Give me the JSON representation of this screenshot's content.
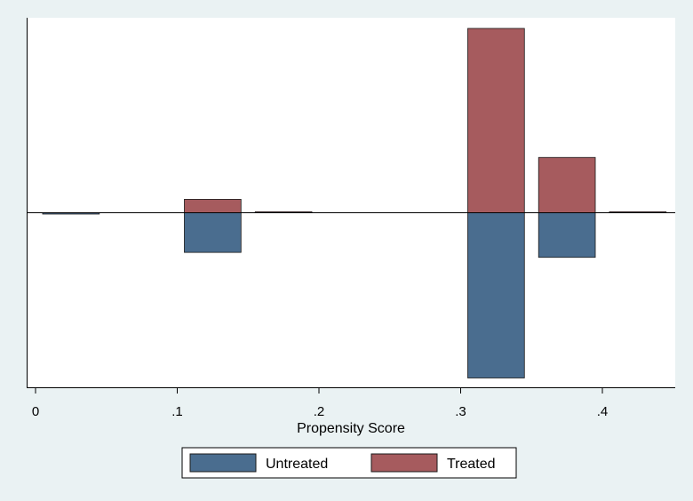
{
  "chart_data": {
    "type": "bar",
    "orientation": "mirrored",
    "xlabel": "Propensity Score",
    "xlim": [
      -0.005,
      0.45
    ],
    "ylim": [
      -1,
      1.1
    ],
    "x_ticks": [
      {
        "value": 0,
        "label": "0"
      },
      {
        "value": 0.1,
        "label": ".1"
      },
      {
        "value": 0.2,
        "label": ".2"
      },
      {
        "value": 0.3,
        "label": ".3"
      },
      {
        "value": 0.4,
        "label": ".4"
      }
    ],
    "bin_edges": [
      [
        0.005,
        0.045
      ],
      [
        0.105,
        0.145
      ],
      [
        0.155,
        0.195
      ],
      [
        0.305,
        0.345
      ],
      [
        0.355,
        0.395
      ],
      [
        0.405,
        0.445
      ]
    ],
    "series": [
      {
        "name": "Treated",
        "color": "#a65b5e",
        "direction": "up",
        "values": [
          0,
          0.08,
          0.006,
          1.1,
          0.33,
          0.006
        ]
      },
      {
        "name": "Untreated",
        "color": "#4a6d8f",
        "direction": "down",
        "values": [
          0.008,
          0.24,
          0,
          1.0,
          0.27,
          0
        ]
      }
    ],
    "legend": {
      "position": "bottom",
      "order": [
        "Untreated",
        "Treated"
      ]
    },
    "grid": false,
    "zero_line": true
  },
  "colors": {
    "background": "#eaf2f3",
    "plot_area": "#ffffff",
    "untreated": "#4a6d8f",
    "treated": "#a65b5e",
    "bar_outline": "#1a1a1a"
  }
}
